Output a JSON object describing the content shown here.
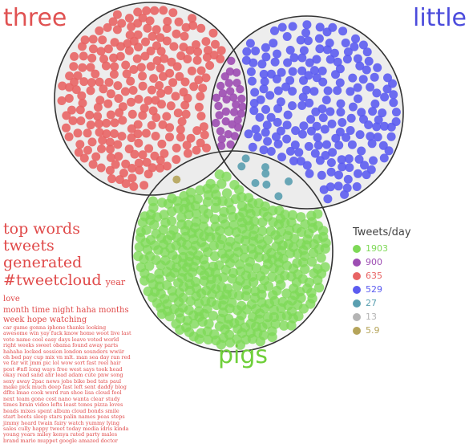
{
  "chart_data": {
    "type": "venn",
    "title": "",
    "sets": [
      {
        "name": "three",
        "color": "#e05252"
      },
      {
        "name": "little",
        "color": "#4b4bdc"
      },
      {
        "name": "pigs",
        "color": "#6fcf3a"
      }
    ],
    "legend_title": "Tweets/day",
    "legend_position": "right",
    "regions": [
      {
        "sets": [
          "pigs"
        ],
        "value": 1903,
        "color": "#7ed957"
      },
      {
        "sets": [
          "three",
          "little"
        ],
        "value": 900,
        "color": "#9d4db3"
      },
      {
        "sets": [
          "three"
        ],
        "value": 635,
        "color": "#e86464"
      },
      {
        "sets": [
          "little"
        ],
        "value": 529,
        "color": "#5c5cf0"
      },
      {
        "sets": [
          "little",
          "pigs"
        ],
        "value": 27,
        "color": "#5a9fb0"
      },
      {
        "sets": [
          "three",
          "little",
          "pigs"
        ],
        "value": 13,
        "color": "#b4b4b4"
      },
      {
        "sets": [
          "three",
          "pigs"
        ],
        "value": 5.9,
        "color": "#b5a45a"
      }
    ],
    "legend_items": [
      {
        "label": "1903",
        "color": "#7ed957"
      },
      {
        "label": "900",
        "color": "#9d4db3"
      },
      {
        "label": "635",
        "color": "#e86464"
      },
      {
        "label": "529",
        "color": "#5c5cf0"
      },
      {
        "label": "27",
        "color": "#5a9fb0"
      },
      {
        "label": "13",
        "color": "#b4b4b4"
      },
      {
        "label": "5.9",
        "color": "#b5a45a"
      }
    ]
  },
  "wordcloud": {
    "line1": "top words tweets",
    "line2": "generated",
    "line3": "#tweetcloud",
    "line3_rest": "year",
    "line3_small": "love",
    "line4": "month time night haha months week hope watching",
    "body": "car game gonna iphone thanks looking awesome win yay fuck know home woot live last vote name cool easy days leave voted world right weeks sweet obama found away parts hahaha locked session london sounders wwiir oh bed pay cup mix vn mlt. man sea day ran red ve far wit jmm pic lol wow sort fast reel hair post #nfl long ways free west says took head okay read sand ahr lead adam cute pnw song sexy away 2pac news jobs bike bed tats paul make pick much deep fast left sent daddy blog dflts lmao cook word run shoe lisa cloud fool next team gone cost nano wanta clear study times brain video lefts least tones pizza loves heads mixes spent album cloud bonds smile start boots sleep stars palin names peas steps jimmy heard twain fairy watch yummy lying sales cully happy tweet today media idris kinda young years miley kenya rated party males brand mario muppet google amazed doctor"
  },
  "colors": {
    "three": "#e05252",
    "little": "#4b4bdc",
    "pigs": "#6fcf3a"
  }
}
